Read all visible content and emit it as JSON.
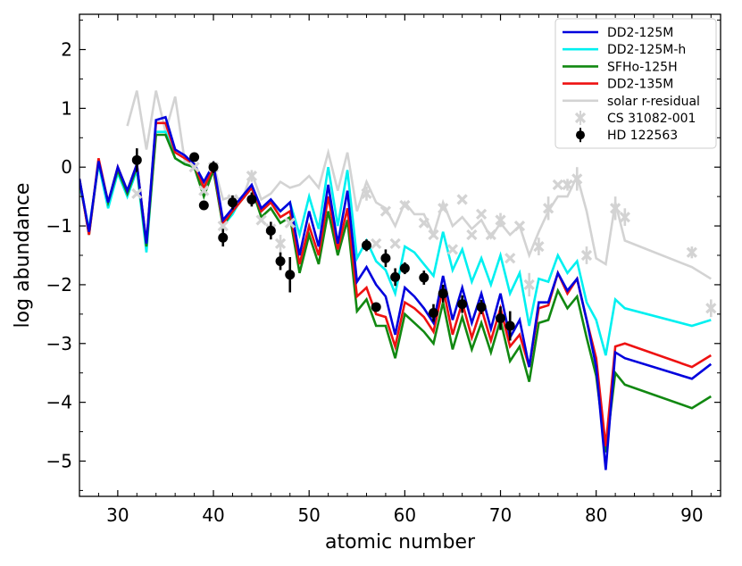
{
  "chart_data": {
    "type": "line",
    "xlabel": "atomic number",
    "ylabel": "log abundance",
    "xlim": [
      26,
      93
    ],
    "ylim": [
      -5.6,
      2.6
    ],
    "x_ticks": [
      30,
      40,
      50,
      60,
      70,
      80,
      90
    ],
    "y_ticks": [
      2,
      1,
      0,
      -1,
      -2,
      -3,
      -4,
      -5
    ],
    "x_tick_labels": [
      "30",
      "40",
      "50",
      "60",
      "70",
      "80",
      "90"
    ],
    "y_tick_labels": [
      "2",
      "1",
      "0",
      "−1",
      "−2",
      "−3",
      "−4",
      "−5"
    ],
    "legend_position": "top-right",
    "series": [
      {
        "name": "DD2-125M",
        "color": "#0000dd",
        "x": [
          26,
          27,
          28,
          29,
          30,
          31,
          32,
          33,
          34,
          35,
          36,
          37,
          38,
          39,
          40,
          41,
          42,
          43,
          44,
          45,
          46,
          47,
          48,
          49,
          50,
          51,
          52,
          53,
          54,
          55,
          56,
          57,
          58,
          59,
          60,
          61,
          62,
          63,
          64,
          65,
          66,
          67,
          68,
          69,
          70,
          71,
          72,
          73,
          74,
          75,
          76,
          77,
          78,
          79,
          80,
          81,
          82,
          83,
          90,
          92
        ],
        "y": [
          -0.2,
          -1.1,
          0.1,
          -0.6,
          0.0,
          -0.4,
          0.05,
          -1.3,
          0.8,
          0.85,
          0.3,
          0.2,
          0.05,
          -0.25,
          0.05,
          -0.9,
          -0.7,
          -0.5,
          -0.3,
          -0.7,
          -0.55,
          -0.75,
          -0.6,
          -1.5,
          -0.75,
          -1.35,
          -0.3,
          -1.3,
          -0.4,
          -1.95,
          -1.7,
          -2.0,
          -2.2,
          -2.85,
          -2.05,
          -2.2,
          -2.4,
          -2.65,
          -1.85,
          -2.6,
          -2.05,
          -2.65,
          -2.15,
          -2.75,
          -2.15,
          -2.9,
          -2.6,
          -3.4,
          -2.3,
          -2.3,
          -1.8,
          -2.1,
          -1.9,
          -2.6,
          -3.4,
          -5.15,
          -3.15,
          -3.25,
          -3.6,
          -3.35
        ]
      },
      {
        "name": "DD2-125M-h",
        "color": "#00f0f0",
        "x": [
          26,
          27,
          28,
          29,
          30,
          31,
          32,
          33,
          34,
          35,
          36,
          37,
          38,
          39,
          40,
          41,
          42,
          43,
          44,
          45,
          46,
          47,
          48,
          49,
          50,
          51,
          52,
          53,
          54,
          55,
          56,
          57,
          58,
          59,
          60,
          61,
          62,
          63,
          64,
          65,
          66,
          67,
          68,
          69,
          70,
          71,
          72,
          73,
          74,
          75,
          76,
          77,
          78,
          79,
          80,
          81,
          82,
          83,
          90,
          92
        ],
        "y": [
          -0.3,
          -1.05,
          0.05,
          -0.7,
          -0.1,
          -0.5,
          -0.05,
          -1.45,
          0.6,
          0.6,
          0.15,
          0.05,
          0.0,
          -0.45,
          -0.05,
          -1.0,
          -0.8,
          -0.5,
          -0.35,
          -0.75,
          -0.6,
          -0.75,
          -0.6,
          -1.15,
          -0.5,
          -1.05,
          0.0,
          -1.0,
          -0.05,
          -1.55,
          -1.25,
          -1.6,
          -1.75,
          -2.15,
          -1.35,
          -1.45,
          -1.65,
          -1.85,
          -1.1,
          -1.75,
          -1.4,
          -1.95,
          -1.55,
          -2.0,
          -1.5,
          -2.15,
          -1.8,
          -2.7,
          -1.9,
          -1.95,
          -1.5,
          -1.8,
          -1.6,
          -2.3,
          -2.6,
          -3.2,
          -2.25,
          -2.4,
          -2.7,
          -2.6
        ]
      },
      {
        "name": "SFHo-125H",
        "color": "#118811",
        "x": [
          26,
          27,
          28,
          29,
          30,
          31,
          32,
          33,
          34,
          35,
          36,
          37,
          38,
          39,
          40,
          41,
          42,
          43,
          44,
          45,
          46,
          47,
          48,
          49,
          50,
          51,
          52,
          53,
          54,
          55,
          56,
          57,
          58,
          59,
          60,
          61,
          62,
          63,
          64,
          65,
          66,
          67,
          68,
          69,
          70,
          71,
          72,
          73,
          74,
          75,
          76,
          77,
          78,
          79,
          80,
          81,
          82,
          83,
          90,
          92
        ],
        "y": [
          -0.2,
          -1.15,
          0.1,
          -0.6,
          -0.05,
          -0.45,
          0.0,
          -1.35,
          0.55,
          0.55,
          0.15,
          0.05,
          0.0,
          -0.5,
          -0.05,
          -1.0,
          -0.75,
          -0.55,
          -0.35,
          -0.85,
          -0.7,
          -0.95,
          -0.85,
          -1.8,
          -1.15,
          -1.65,
          -0.75,
          -1.5,
          -0.9,
          -2.45,
          -2.25,
          -2.7,
          -2.7,
          -3.25,
          -2.5,
          -2.65,
          -2.8,
          -3.0,
          -2.3,
          -3.1,
          -2.55,
          -3.1,
          -2.65,
          -3.15,
          -2.6,
          -3.3,
          -3.05,
          -3.65,
          -2.65,
          -2.6,
          -2.1,
          -2.4,
          -2.2,
          -2.9,
          -3.55,
          -4.85,
          -3.5,
          -3.7,
          -4.1,
          -3.9
        ]
      },
      {
        "name": "DD2-135M",
        "color": "#ee1111",
        "x": [
          26,
          27,
          28,
          29,
          30,
          31,
          32,
          33,
          34,
          35,
          36,
          37,
          38,
          39,
          40,
          41,
          42,
          43,
          44,
          45,
          46,
          47,
          48,
          49,
          50,
          51,
          52,
          53,
          54,
          55,
          56,
          57,
          58,
          59,
          60,
          61,
          62,
          63,
          64,
          65,
          66,
          67,
          68,
          69,
          70,
          71,
          72,
          73,
          74,
          75,
          76,
          77,
          78,
          79,
          80,
          81,
          82,
          83,
          90,
          92
        ],
        "y": [
          -0.2,
          -1.15,
          0.15,
          -0.6,
          0.0,
          -0.4,
          0.05,
          -1.3,
          0.75,
          0.75,
          0.25,
          0.15,
          0.05,
          -0.35,
          0.0,
          -0.95,
          -0.75,
          -0.55,
          -0.35,
          -0.75,
          -0.6,
          -0.85,
          -0.75,
          -1.65,
          -1.0,
          -1.5,
          -0.5,
          -1.4,
          -0.7,
          -2.2,
          -2.05,
          -2.5,
          -2.55,
          -3.05,
          -2.3,
          -2.4,
          -2.55,
          -2.8,
          -2.05,
          -2.85,
          -2.3,
          -2.9,
          -2.4,
          -2.95,
          -2.4,
          -3.05,
          -2.85,
          -3.4,
          -2.4,
          -2.35,
          -1.8,
          -2.15,
          -1.9,
          -2.6,
          -3.25,
          -4.75,
          -3.05,
          -3.0,
          -3.4,
          -3.2
        ]
      },
      {
        "name": "solar r-residual",
        "color": "#d3d3d3",
        "x": [
          31,
          32,
          33,
          34,
          35,
          36,
          37,
          38,
          39,
          40,
          41,
          42,
          43,
          44,
          45,
          46,
          47,
          48,
          49,
          50,
          51,
          52,
          53,
          54,
          55,
          56,
          57,
          58,
          59,
          60,
          61,
          62,
          63,
          64,
          65,
          66,
          67,
          68,
          69,
          70,
          71,
          72,
          73,
          74,
          75,
          76,
          77,
          78,
          79,
          80,
          81,
          82,
          83,
          90,
          92
        ],
        "y": [
          0.7,
          1.3,
          0.3,
          1.3,
          0.6,
          1.2,
          0.1,
          0.05,
          -0.3,
          0.05,
          -0.55,
          -0.5,
          -0.55,
          -0.1,
          -0.55,
          -0.45,
          -0.25,
          -0.35,
          -0.3,
          -0.15,
          -0.35,
          0.25,
          -0.4,
          0.25,
          -0.75,
          -0.25,
          -0.6,
          -0.7,
          -1.0,
          -0.6,
          -0.8,
          -0.8,
          -1.15,
          -0.6,
          -1.0,
          -0.85,
          -1.05,
          -0.9,
          -1.2,
          -0.95,
          -1.15,
          -1.0,
          -1.5,
          -1.1,
          -0.75,
          -0.5,
          -0.5,
          -0.15,
          -0.75,
          -1.55,
          -1.65,
          -0.6,
          -1.25,
          -1.7,
          -1.9
        ]
      },
      {
        "name": "CS 31082-001",
        "color": "#d3d3d3",
        "marker": "x",
        "x": [
          32,
          38,
          39,
          40,
          41,
          42,
          44,
          45,
          46,
          47,
          48,
          56,
          57,
          58,
          59,
          60,
          62,
          63,
          64,
          65,
          66,
          67,
          68,
          69,
          70,
          71,
          72,
          73,
          74,
          75,
          76,
          77,
          78,
          79,
          82,
          83,
          90,
          92
        ],
        "y": [
          -0.45,
          0.0,
          -0.4,
          0.0,
          -1.0,
          -0.55,
          -0.15,
          -0.9,
          -1.05,
          -1.3,
          -0.95,
          -0.45,
          -1.3,
          -0.75,
          -1.3,
          -0.65,
          -0.95,
          -1.15,
          -0.7,
          -1.4,
          -0.55,
          -1.15,
          -0.8,
          -1.15,
          -0.9,
          -1.55,
          -1.0,
          -2.0,
          -1.35,
          -0.7,
          -0.3,
          -0.3,
          -0.2,
          -1.5,
          -0.7,
          -0.85,
          -1.45,
          -2.4
        ],
        "yerr": [
          0,
          0,
          0,
          0,
          0,
          0,
          0.1,
          0,
          0,
          0.15,
          0,
          0.12,
          0,
          0,
          0,
          0,
          0,
          0,
          0,
          0,
          0,
          0,
          0,
          0,
          0.12,
          0,
          0,
          0.2,
          0.15,
          0.2,
          0,
          0.1,
          0.2,
          0.15,
          0.2,
          0.15,
          0.1,
          0.15
        ]
      },
      {
        "name": "HD 122563",
        "color": "#000000",
        "marker": "o",
        "x": [
          32,
          38,
          39,
          40,
          41,
          42,
          44,
          46,
          47,
          48,
          56,
          57,
          58,
          59,
          60,
          62,
          63,
          64,
          66,
          68,
          70,
          71
        ],
        "y": [
          0.12,
          0.17,
          -0.65,
          0.0,
          -1.2,
          -0.6,
          -0.55,
          -1.08,
          -1.6,
          -1.83,
          -1.33,
          -2.38,
          -1.55,
          -1.87,
          -1.72,
          -1.88,
          -2.48,
          -2.15,
          -2.33,
          -2.38,
          -2.57,
          -2.7
        ],
        "yerr": [
          0.2,
          0.05,
          0.05,
          0.1,
          0.15,
          0.12,
          0.12,
          0.15,
          0.15,
          0.3,
          0.1,
          0.05,
          0.15,
          0.15,
          0.1,
          0.12,
          0.15,
          0.15,
          0.15,
          0.12,
          0.2,
          0.25
        ]
      }
    ]
  }
}
